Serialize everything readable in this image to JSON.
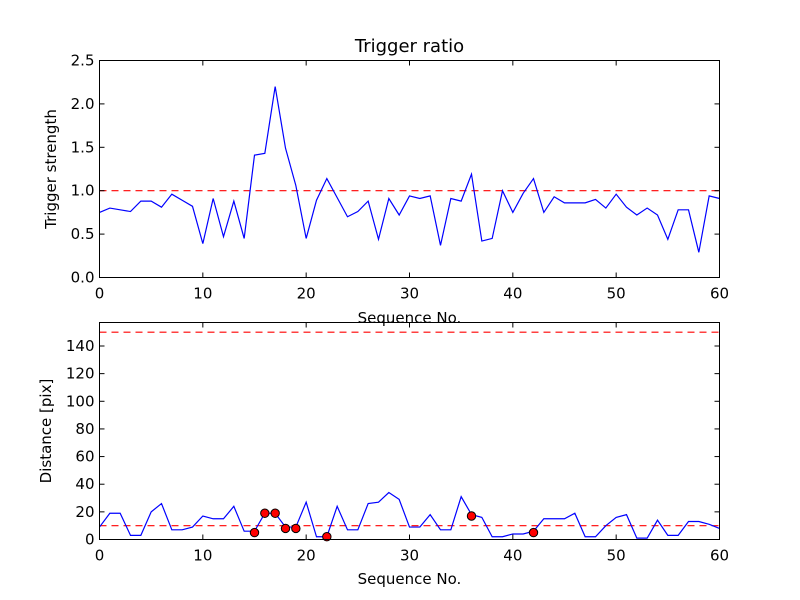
{
  "chart_data": [
    {
      "type": "line",
      "title": "Trigger ratio",
      "xlabel": "Sequence No.",
      "ylabel": "Trigger strength",
      "xlim": [
        0,
        60
      ],
      "ylim": [
        0,
        2.5
      ],
      "xticks": [
        "0",
        "10",
        "20",
        "30",
        "40",
        "50",
        "60"
      ],
      "yticks": [
        "0.0",
        "0.5",
        "1.0",
        "1.5",
        "2.0",
        "2.5"
      ],
      "threshold": 1.0,
      "line_color": "#0000ff",
      "threshold_color": "#ff0000",
      "series": [
        {
          "name": "trigger strength",
          "x": [
            0,
            1,
            2,
            3,
            4,
            5,
            6,
            7,
            8,
            9,
            10,
            11,
            12,
            13,
            14,
            15,
            16,
            17,
            18,
            19,
            20,
            21,
            22,
            23,
            24,
            25,
            26,
            27,
            28,
            29,
            30,
            31,
            32,
            33,
            34,
            35,
            36,
            37,
            38,
            39,
            40,
            41,
            42,
            43,
            44,
            45,
            46,
            47,
            48,
            49,
            50,
            51,
            52,
            53,
            54,
            55,
            56,
            57,
            58,
            59,
            60
          ],
          "values": [
            0.75,
            0.8,
            0.78,
            0.76,
            0.88,
            0.88,
            0.81,
            0.96,
            0.89,
            0.82,
            0.39,
            0.91,
            0.47,
            0.88,
            0.45,
            1.41,
            1.43,
            2.2,
            1.49,
            1.06,
            0.45,
            0.89,
            1.14,
            0.92,
            0.7,
            0.76,
            0.88,
            0.44,
            0.91,
            0.72,
            0.94,
            0.91,
            0.94,
            0.37,
            0.91,
            0.88,
            1.19,
            0.42,
            0.45,
            1.0,
            0.75,
            0.97,
            1.14,
            0.75,
            0.93,
            0.86,
            0.86,
            0.86,
            0.9,
            0.8,
            0.96,
            0.81,
            0.72,
            0.8,
            0.72,
            0.44,
            0.78,
            0.78,
            0.29,
            0.94,
            0.91
          ]
        }
      ]
    },
    {
      "type": "line",
      "title": "",
      "xlabel": "Sequence No.",
      "ylabel": "Distance [pix]",
      "xlim": [
        0,
        60
      ],
      "ylim": [
        0,
        157
      ],
      "xticks": [
        "0",
        "10",
        "20",
        "30",
        "40",
        "50",
        "60"
      ],
      "yticks": [
        "0",
        "20",
        "40",
        "60",
        "80",
        "100",
        "120",
        "140"
      ],
      "thresholds": [
        150,
        10
      ],
      "line_color": "#0000ff",
      "threshold_color": "#ff0000",
      "marker_color": "#ff0000",
      "series": [
        {
          "name": "distance",
          "x": [
            0,
            1,
            2,
            3,
            4,
            5,
            6,
            7,
            8,
            9,
            10,
            11,
            12,
            13,
            14,
            15,
            16,
            17,
            18,
            19,
            20,
            21,
            22,
            23,
            24,
            25,
            26,
            27,
            28,
            29,
            30,
            31,
            32,
            33,
            34,
            35,
            36,
            37,
            38,
            39,
            40,
            41,
            42,
            43,
            44,
            45,
            46,
            47,
            48,
            49,
            50,
            51,
            52,
            53,
            54,
            55,
            56,
            57,
            58,
            59,
            60
          ],
          "values": [
            9,
            19,
            19,
            3,
            3,
            20,
            26,
            7,
            7,
            9,
            17,
            15,
            15,
            24,
            6,
            6,
            19,
            19,
            9,
            9,
            27,
            2,
            2,
            24,
            7,
            7,
            26,
            27,
            34,
            29,
            9,
            9,
            18,
            7,
            7,
            31,
            18,
            16,
            2,
            2,
            4,
            4,
            6,
            15,
            15,
            15,
            19,
            2,
            2,
            10,
            16,
            18,
            1,
            1,
            14,
            3,
            3,
            13,
            13,
            11,
            8
          ]
        },
        {
          "name": "triggered points",
          "type": "scatter",
          "x": [
            15,
            16,
            17,
            18,
            19,
            22,
            36,
            42
          ],
          "values": [
            5,
            19,
            19,
            8,
            8,
            2,
            17,
            5
          ]
        }
      ]
    }
  ]
}
